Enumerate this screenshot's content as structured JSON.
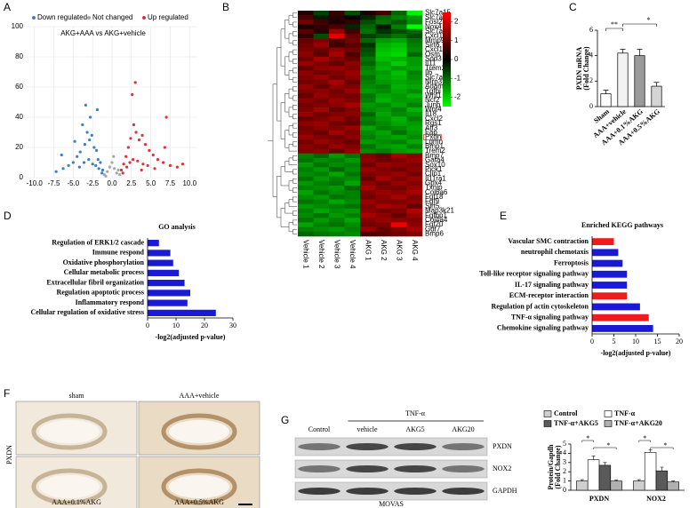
{
  "panels": [
    "A",
    "B",
    "C",
    "D",
    "E",
    "F",
    "G"
  ],
  "chart_data": [
    {
      "type": "scatter",
      "title": "AKG+AAA vs AKG+vehicle",
      "legend": "top",
      "grid": true,
      "xlim": [
        -11,
        11
      ],
      "xticks": [
        {
          "value": -10,
          "label": "-10.0"
        },
        {
          "value": -7.5,
          "label": "-7.5"
        },
        {
          "value": -5,
          "label": "-5.0"
        },
        {
          "value": -2.5,
          "label": "-2.5"
        },
        {
          "value": 0,
          "label": "0.0"
        },
        {
          "value": 2.5,
          "label": "2.5"
        },
        {
          "value": 5,
          "label": "5.0"
        },
        {
          "value": 7.5,
          "label": "7.5"
        },
        {
          "value": 10,
          "label": "10.0"
        }
      ],
      "ylim": [
        0,
        100
      ],
      "yticks": [
        0,
        20,
        40,
        60,
        80,
        100
      ],
      "series": [
        {
          "name": "Down regulated",
          "color": "#3d7fc4",
          "x": [
            -1.2,
            -1.5,
            -1.8,
            -2.0,
            -2.3,
            -2.6,
            -2.9,
            -3.2,
            -3.5,
            -3.8,
            -4.1,
            -4.5,
            -5.0,
            -5.6,
            -6.3,
            -7.2,
            -1.3,
            -1.7,
            -2.1,
            -2.5,
            -3.0,
            -3.6,
            -4.2,
            -1.9,
            -2.8,
            -3.4,
            -6.5,
            -4.8
          ],
          "y": [
            5,
            10,
            12,
            18,
            20,
            28,
            25,
            30,
            22,
            35,
            17,
            14,
            10,
            8,
            6,
            4,
            3,
            6,
            8,
            9,
            12,
            10,
            7,
            45,
            40,
            48,
            15,
            24
          ]
        },
        {
          "name": "Not changed",
          "color": "#a6a6a6",
          "x": [
            -1.0,
            -0.6,
            -0.3,
            0,
            0.3,
            0.6,
            1.0,
            -0.8,
            0.8,
            0.2
          ],
          "y": [
            2,
            4,
            7,
            10,
            6,
            3,
            2,
            1,
            5,
            14
          ]
        },
        {
          "name": "Up regulated",
          "color": "#e0303a",
          "x": [
            1.2,
            1.5,
            1.8,
            2.1,
            2.4,
            2.8,
            3.1,
            3.5,
            3.9,
            4.3,
            4.8,
            5.3,
            5.9,
            6.6,
            7.5,
            8.4,
            9.1,
            1.4,
            1.9,
            2.3,
            2.7,
            3.3,
            4.0,
            4.6,
            5.5,
            2.6,
            3.0,
            6.8,
            7.0,
            3.8
          ],
          "y": [
            5,
            9,
            14,
            20,
            26,
            35,
            30,
            25,
            28,
            22,
            18,
            15,
            12,
            10,
            8,
            7,
            9,
            3,
            7,
            10,
            12,
            11,
            9,
            8,
            6,
            55,
            63,
            20,
            40,
            5
          ]
        }
      ]
    },
    {
      "type": "heatmap",
      "rows": [
        "Slc7a15",
        "Slc7a3",
        "Fosl2",
        "Nox4",
        "Slc7a13",
        "Cxcl11",
        "Mmp9",
        "Sirt6",
        "Cxcl10",
        "Osm",
        "Sod3",
        "Il11",
        "Trem1",
        "Il6",
        "Slc7a11",
        "Nlrp3",
        "Adam8",
        "Tgfbi",
        "Wnt1",
        "Ncf2",
        "Junb",
        "Wnt4",
        "Il18",
        "Cxcl2",
        "Rgs1",
        "Atf3",
        "Fap",
        "Pxdn",
        "Lgmn",
        "Bmp1",
        "Trem2",
        "Bmp7",
        "Gata4",
        "Sox10",
        "Pick1",
        "Clip1",
        "Il11ra1",
        "Gpx4",
        "Txnip",
        "Col6a6",
        "Fgf18",
        "Fgf9",
        "Sirt5",
        "Map3k21",
        "Fgfbp1",
        "Col4a4",
        "Fgf20",
        "Gdf7",
        "Bmp6"
      ],
      "columns": [
        "Vehicle 1",
        "Vehicle 2",
        "Vehicle 3",
        "Vehicle 4",
        "AKG 1",
        "AKG 2",
        "AKG 3",
        "AKG 4"
      ],
      "zlim": [
        -2.5,
        2.5
      ],
      "zticks": [
        -2,
        -1,
        0,
        1,
        2
      ],
      "values": [
        [
          0.3,
          -0.5,
          0.4,
          -0.6,
          0.2,
          0.5,
          -0.8,
          -1.9
        ],
        [
          0.6,
          -0.2,
          0.3,
          0.1,
          -0.3,
          -0.8,
          -1.0,
          -1.2
        ],
        [
          0.9,
          0.5,
          0.2,
          0.4,
          -0.6,
          -0.9,
          -0.7,
          -1.1
        ],
        [
          0.2,
          0.4,
          0.6,
          -0.3,
          -0.8,
          -0.2,
          -1.0,
          -2.2
        ],
        [
          0.7,
          0.3,
          1.2,
          0.5,
          -0.9,
          -0.4,
          -0.6,
          -0.8
        ],
        [
          0.4,
          -0.6,
          1.8,
          0.8,
          -0.5,
          -0.7,
          -0.9,
          -0.6
        ],
        [
          0.8,
          1.0,
          0.6,
          0.9,
          -0.8,
          -1.2,
          -1.3,
          -0.9
        ],
        [
          0.9,
          1.2,
          0.5,
          0.7,
          -0.4,
          -1.4,
          -1.5,
          -1.0
        ],
        [
          1.0,
          0.8,
          1.1,
          0.9,
          -0.6,
          -1.5,
          -1.6,
          -1.1
        ],
        [
          1.1,
          0.7,
          1.3,
          0.6,
          -0.7,
          -1.6,
          -1.7,
          -0.8
        ],
        [
          0.9,
          1.3,
          1.0,
          0.8,
          -0.9,
          -1.5,
          -1.4,
          -1.2
        ],
        [
          1.2,
          1.0,
          0.8,
          1.1,
          -0.8,
          -1.3,
          -1.6,
          -1.2
        ],
        [
          0.8,
          1.1,
          1.2,
          1.0,
          -1.0,
          -1.4,
          -1.2,
          -1.3
        ],
        [
          1.1,
          0.9,
          1.0,
          1.2,
          -1.1,
          -1.2,
          -1.5,
          -1.0
        ],
        [
          1.0,
          1.2,
          0.9,
          1.1,
          -0.9,
          -1.3,
          -1.4,
          -1.1
        ],
        [
          0.9,
          1.0,
          1.3,
          0.8,
          -1.0,
          -1.2,
          -1.3,
          -1.2
        ],
        [
          1.2,
          0.8,
          1.1,
          1.0,
          -1.1,
          -1.0,
          -1.4,
          -1.3
        ],
        [
          1.0,
          1.1,
          0.9,
          1.2,
          -1.2,
          -1.1,
          -1.3,
          -1.1
        ],
        [
          0.8,
          1.2,
          1.0,
          0.9,
          -0.9,
          -1.3,
          -1.2,
          -1.4
        ],
        [
          1.1,
          0.9,
          1.2,
          1.0,
          -1.0,
          -1.4,
          -1.2,
          -1.2
        ],
        [
          0.9,
          1.0,
          1.1,
          1.3,
          -1.2,
          -1.1,
          -1.3,
          -1.0
        ],
        [
          1.0,
          1.3,
          0.8,
          1.0,
          -1.1,
          -1.2,
          -1.0,
          -1.4
        ],
        [
          1.2,
          0.9,
          1.0,
          1.1,
          -0.8,
          -1.3,
          -1.1,
          -1.2
        ],
        [
          0.8,
          1.0,
          1.2,
          0.9,
          -1.0,
          -1.2,
          -1.4,
          -1.0
        ],
        [
          1.1,
          1.2,
          0.9,
          0.8,
          -0.9,
          -1.1,
          -1.3,
          -1.2
        ],
        [
          0.9,
          1.1,
          1.0,
          1.2,
          -1.3,
          -1.0,
          -1.1,
          -1.3
        ],
        [
          1.0,
          0.8,
          1.3,
          1.0,
          -1.1,
          -1.3,
          -0.9,
          -1.2
        ],
        [
          1.2,
          1.0,
          0.9,
          1.1,
          -1.0,
          -1.2,
          -1.3,
          -1.1
        ],
        [
          0.9,
          1.2,
          1.0,
          0.8,
          -1.2,
          -1.1,
          -1.0,
          -1.3
        ],
        [
          1.1,
          0.9,
          1.2,
          1.0,
          -0.9,
          -1.2,
          -1.3,
          -1.0
        ],
        [
          1.0,
          1.1,
          0.8,
          1.2,
          -1.1,
          -1.0,
          -1.2,
          -1.3
        ],
        [
          -1.0,
          -0.8,
          -1.2,
          -0.9,
          1.0,
          0.8,
          1.3,
          1.1
        ],
        [
          -0.9,
          -1.1,
          -1.0,
          -1.2,
          1.1,
          0.9,
          1.0,
          1.2
        ],
        [
          -1.2,
          -0.9,
          -1.1,
          -1.0,
          0.9,
          1.2,
          1.1,
          1.0
        ],
        [
          -1.0,
          -1.2,
          -0.8,
          -1.1,
          1.2,
          1.0,
          0.9,
          1.1
        ],
        [
          -1.1,
          -1.0,
          -1.3,
          -0.9,
          1.0,
          1.1,
          1.2,
          0.9
        ],
        [
          -0.9,
          -1.2,
          -1.0,
          -1.1,
          0.8,
          1.3,
          1.0,
          1.2
        ],
        [
          -1.2,
          -1.0,
          -0.9,
          -1.3,
          1.1,
          0.9,
          1.2,
          1.0
        ],
        [
          -1.0,
          -1.1,
          -1.2,
          -0.8,
          1.3,
          1.0,
          0.9,
          1.2
        ],
        [
          -1.3,
          -0.9,
          -1.1,
          -1.0,
          1.0,
          1.2,
          1.1,
          1.3
        ],
        [
          -1.1,
          -1.2,
          -0.9,
          -1.0,
          0.9,
          1.1,
          1.3,
          1.0
        ],
        [
          -0.9,
          -1.0,
          -1.3,
          -1.1,
          1.2,
          1.0,
          1.0,
          1.1
        ],
        [
          -1.2,
          -1.1,
          -1.0,
          -0.9,
          1.0,
          1.3,
          1.2,
          0.8
        ],
        [
          -1.0,
          -1.3,
          -1.1,
          -1.2,
          1.1,
          0.9,
          1.0,
          1.4
        ],
        [
          -1.1,
          -0.9,
          -1.2,
          -1.0,
          1.3,
          1.1,
          0.8,
          1.2
        ],
        [
          -0.9,
          -1.2,
          -1.0,
          -1.3,
          1.0,
          1.2,
          1.1,
          1.0
        ],
        [
          -1.3,
          -1.0,
          -0.9,
          -1.1,
          0.9,
          1.0,
          1.9,
          1.1
        ],
        [
          -1.0,
          -1.1,
          -1.2,
          -1.0,
          1.2,
          0.8,
          1.0,
          1.3
        ],
        [
          -0.8,
          -0.9,
          -1.0,
          -1.1,
          0.6,
          0.7,
          0.9,
          1.0
        ]
      ]
    },
    {
      "type": "bar",
      "ylabel": [
        "PXDN mRNA",
        "(Fold Change)"
      ],
      "categories": [
        "Sham",
        "AAA+vehicle",
        "AAA+0.1%AKG",
        "AAA+0.5%AKG"
      ],
      "values": [
        1.0,
        4.2,
        4.0,
        1.6
      ],
      "errors": [
        0.3,
        0.3,
        0.5,
        0.3
      ],
      "colors": [
        "#ffffff",
        "#f2f2f2",
        "#9a9a9a",
        "#d4d4d4"
      ],
      "ylim": [
        0,
        6
      ],
      "yticks": [
        0,
        2,
        4,
        6
      ],
      "annotations": [
        "**",
        "*"
      ]
    },
    {
      "type": "barh",
      "title": "GO analysis",
      "xlabel": "-log2(adjusted p-value)",
      "categories": [
        "Regulation of ERK1/2 cascade",
        "Immune respond",
        "Oxidative phosphorylation",
        "Cellular metabolic process",
        "Extracellular fibril organization",
        "Regulation apoptotic process",
        "Inflammatory respond",
        "Cellular regulation of oxidative stress"
      ],
      "values": [
        4,
        8,
        9,
        11,
        13,
        15,
        14,
        24
      ],
      "color": "#1a1ad4",
      "xlim": [
        0,
        30
      ],
      "xticks": [
        0,
        10,
        20,
        30
      ]
    },
    {
      "type": "barh",
      "title": "Enriched KEGG pathways",
      "xlabel": "-log2(adjusted p-value)",
      "categories": [
        "Vascular SMC contraction",
        "neutrophil chemotaxis",
        "Ferroptosis",
        "Toll-like receptor signaling pathway",
        "IL-17 signaling pathway",
        "ECM-receptor interaction",
        "Regulation pf actin cytoskeleton",
        "TNF-α  signaling pathway",
        "Chemokine signaling pathway"
      ],
      "values": [
        5,
        6,
        7,
        8,
        8,
        8,
        11,
        13,
        14
      ],
      "colors": [
        "#ee1c1c",
        "#1a1ad4",
        "#1a1ad4",
        "#1a1ad4",
        "#1a1ad4",
        "#ee1c1c",
        "#1a1ad4",
        "#ee1c1c",
        "#1a1ad4"
      ],
      "xlim": [
        0,
        20
      ],
      "xticks": [
        0,
        5,
        10,
        15,
        20
      ]
    },
    {
      "type": "grouped_bar",
      "ylabel": [
        "Protein/Gapdh",
        "(Fold Change)"
      ],
      "categories": [
        "PXDN",
        "NOX2"
      ],
      "legend": "top",
      "series": [
        {
          "name": "Control",
          "color": "#cfcfcf",
          "values": [
            1.0,
            1.0
          ],
          "errors": [
            0.15,
            0.15
          ]
        },
        {
          "name": "TNF-α",
          "color": "#ffffff",
          "values": [
            3.3,
            4.1
          ],
          "errors": [
            0.4,
            0.3
          ]
        },
        {
          "name": "TNF-α+AKG5",
          "color": "#5a5a5a",
          "values": [
            2.7,
            2.1
          ],
          "errors": [
            0.3,
            0.4
          ]
        },
        {
          "name": "TNF-α+AKG20",
          "color": "#b0b0b0",
          "values": [
            1.0,
            0.9
          ],
          "errors": [
            0.1,
            0.1
          ]
        }
      ],
      "ylim": [
        0,
        5
      ],
      "yticks": [
        0,
        1,
        2,
        3,
        4,
        5
      ],
      "annotations": [
        "*"
      ]
    }
  ],
  "histology": {
    "columns": [
      "sham",
      "AAA+vehicle"
    ],
    "row_label": "PXDN",
    "bottom": [
      "AAA+0.1%AKG",
      "AAA+0.5%AKG"
    ]
  },
  "western_blot": {
    "treatment": "TNF-α",
    "lanes": [
      "Control",
      "vehicle",
      "AKG5",
      "AKG20"
    ],
    "proteins": [
      "PXDN",
      "NOX2",
      "GAPDH"
    ],
    "cell_line": "MOVAS"
  }
}
